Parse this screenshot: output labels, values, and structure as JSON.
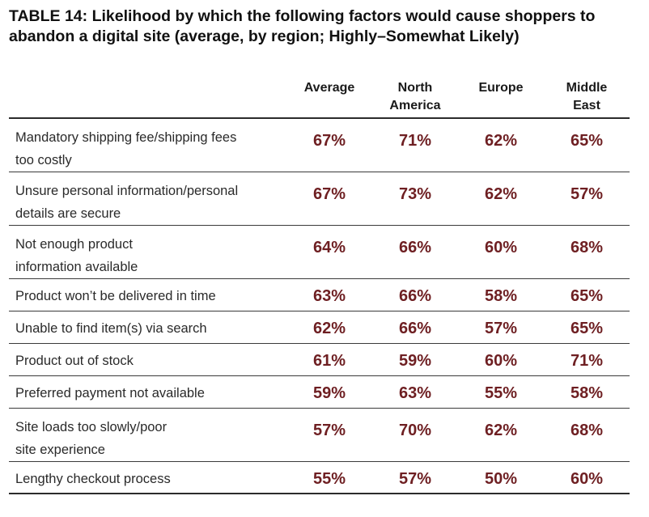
{
  "table": {
    "title": "TABLE 14: Likelihood by which the following factors would cause shoppers to abandon a digital site (average, by region; Highly–Somewhat Likely)",
    "columns": {
      "average": "Average",
      "north_america_1": "North",
      "north_america_2": "America",
      "europe": "Europe",
      "middle_east_1": "Middle",
      "middle_east_2": "East"
    },
    "rows": [
      {
        "label_1": "Mandatory shipping fee/shipping fees",
        "label_2": "too costly",
        "values": [
          "67%",
          "71%",
          "62%",
          "65%"
        ]
      },
      {
        "label_1": "Unsure personal information/personal",
        "label_2": "details are secure",
        "values": [
          "67%",
          "73%",
          "62%",
          "57%"
        ]
      },
      {
        "label_1": "Not enough product",
        "label_2": "information available",
        "values": [
          "64%",
          "66%",
          "60%",
          "68%"
        ]
      },
      {
        "label_1": "Product won’t be delivered in time",
        "label_2": "",
        "values": [
          "63%",
          "66%",
          "58%",
          "65%"
        ]
      },
      {
        "label_1": "Unable to find item(s) via search",
        "label_2": "",
        "values": [
          "62%",
          "66%",
          "57%",
          "65%"
        ]
      },
      {
        "label_1": "Product out of stock",
        "label_2": "",
        "values": [
          "61%",
          "59%",
          "60%",
          "71%"
        ]
      },
      {
        "label_1": "Preferred payment not available",
        "label_2": "",
        "values": [
          "59%",
          "63%",
          "55%",
          "58%"
        ]
      },
      {
        "label_1": "Site loads too slowly/poor",
        "label_2": "site experience",
        "values": [
          "57%",
          "70%",
          "62%",
          "68%"
        ]
      },
      {
        "label_1": "Lengthy checkout process",
        "label_2": "",
        "values": [
          "55%",
          "57%",
          "50%",
          "60%"
        ]
      }
    ]
  },
  "colors": {
    "value_text": "#6e1f22",
    "rule": "#2b2b2b"
  }
}
